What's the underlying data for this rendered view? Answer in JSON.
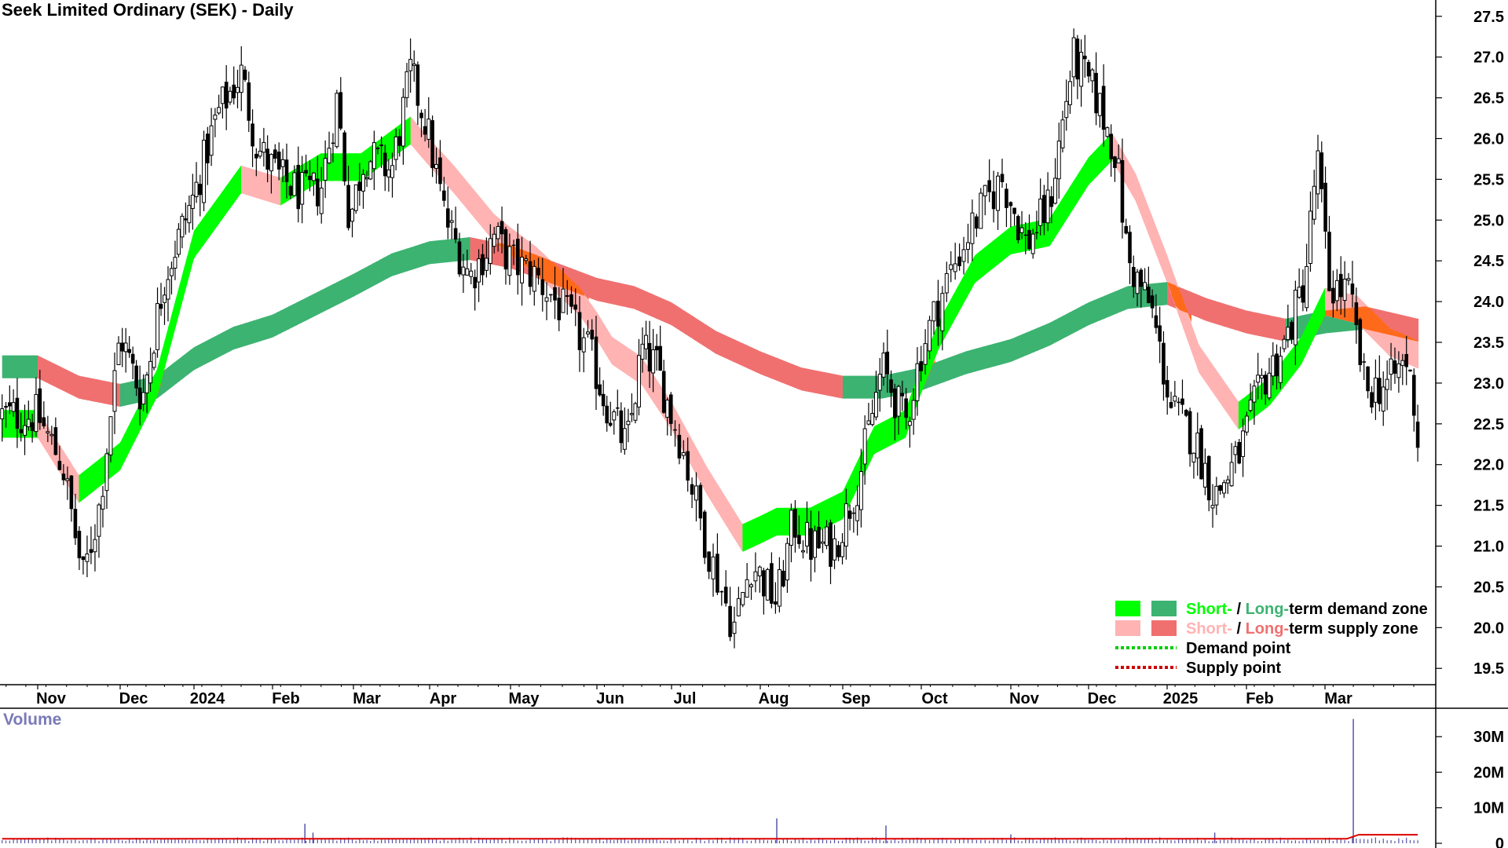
{
  "chart_data": {
    "type": "candlestick",
    "title": "Seek Limited Ordinary (SEK) - Daily",
    "price_axis": {
      "ylim": [
        19.3,
        27.7
      ],
      "ticks": [
        19.5,
        20.0,
        20.5,
        21.0,
        21.5,
        22.0,
        22.5,
        23.0,
        23.5,
        24.0,
        24.5,
        25.0,
        25.5,
        26.0,
        26.5,
        27.0,
        27.5
      ],
      "tick_labels": [
        "19.5",
        "20.0",
        "20.5",
        "21.0",
        "21.5",
        "22.0",
        "22.5",
        "23.0",
        "23.5",
        "24.0",
        "24.5",
        "25.0",
        "25.5",
        "26.0",
        "26.5",
        "27.0",
        "27.5"
      ],
      "side": "right"
    },
    "time_axis": {
      "labels": [
        "Nov",
        "Dec",
        "2024",
        "Feb",
        "Mar",
        "Apr",
        "May",
        "Jun",
        "Jul",
        "Aug",
        "Sep",
        "Oct",
        "Nov",
        "Dec",
        "2025",
        "Feb",
        "Mar"
      ],
      "bold_labels": [
        "2024",
        "2025"
      ]
    },
    "price_path": [
      {
        "m": 0.0,
        "p": 22.6
      },
      {
        "m": 0.3,
        "p": 22.0
      },
      {
        "m": 0.55,
        "p": 20.6
      },
      {
        "m": 0.75,
        "p": 21.5
      },
      {
        "m": 1.0,
        "p": 23.6
      },
      {
        "m": 1.3,
        "p": 22.8
      },
      {
        "m": 1.6,
        "p": 24.3
      },
      {
        "m": 2.0,
        "p": 25.3
      },
      {
        "m": 2.3,
        "p": 26.3
      },
      {
        "m": 2.6,
        "p": 26.8
      },
      {
        "m": 2.8,
        "p": 25.9
      },
      {
        "m": 3.1,
        "p": 25.5
      },
      {
        "m": 3.4,
        "p": 25.3
      },
      {
        "m": 3.6,
        "p": 25.4
      },
      {
        "m": 3.8,
        "p": 26.5
      },
      {
        "m": 3.95,
        "p": 25.0
      },
      {
        "m": 4.15,
        "p": 25.8
      },
      {
        "m": 4.5,
        "p": 25.6
      },
      {
        "m": 4.75,
        "p": 26.8
      },
      {
        "m": 4.95,
        "p": 26.2
      },
      {
        "m": 5.2,
        "p": 25.0
      },
      {
        "m": 5.5,
        "p": 24.3
      },
      {
        "m": 5.8,
        "p": 24.8
      },
      {
        "m": 6.0,
        "p": 24.5
      },
      {
        "m": 6.3,
        "p": 24.3
      },
      {
        "m": 6.6,
        "p": 23.9
      },
      {
        "m": 6.9,
        "p": 23.4
      },
      {
        "m": 7.1,
        "p": 22.8
      },
      {
        "m": 7.4,
        "p": 22.2
      },
      {
        "m": 7.6,
        "p": 23.4
      },
      {
        "m": 7.8,
        "p": 23.2
      },
      {
        "m": 8.1,
        "p": 22.3
      },
      {
        "m": 8.4,
        "p": 21.0
      },
      {
        "m": 8.7,
        "p": 20.0
      },
      {
        "m": 8.9,
        "p": 20.8
      },
      {
        "m": 9.2,
        "p": 20.3
      },
      {
        "m": 9.4,
        "p": 21.3
      },
      {
        "m": 9.6,
        "p": 21.0
      },
      {
        "m": 9.9,
        "p": 21.0
      },
      {
        "m": 10.2,
        "p": 21.8
      },
      {
        "m": 10.5,
        "p": 23.2
      },
      {
        "m": 10.8,
        "p": 22.5
      },
      {
        "m": 11.0,
        "p": 23.4
      },
      {
        "m": 11.3,
        "p": 24.3
      },
      {
        "m": 11.6,
        "p": 25.0
      },
      {
        "m": 11.9,
        "p": 25.5
      },
      {
        "m": 12.2,
        "p": 24.7
      },
      {
        "m": 12.5,
        "p": 25.2
      },
      {
        "m": 12.8,
        "p": 27.0
      },
      {
        "m": 13.1,
        "p": 26.5
      },
      {
        "m": 13.35,
        "p": 25.8
      },
      {
        "m": 13.5,
        "p": 24.5
      },
      {
        "m": 13.8,
        "p": 23.9
      },
      {
        "m": 14.05,
        "p": 22.7
      },
      {
        "m": 14.35,
        "p": 22.3
      },
      {
        "m": 14.6,
        "p": 21.6
      },
      {
        "m": 14.9,
        "p": 22.1
      },
      {
        "m": 15.2,
        "p": 23.0
      },
      {
        "m": 15.5,
        "p": 23.5
      },
      {
        "m": 15.75,
        "p": 24.3
      },
      {
        "m": 15.9,
        "p": 25.8
      },
      {
        "m": 16.05,
        "p": 24.2
      },
      {
        "m": 16.3,
        "p": 24.1
      },
      {
        "m": 16.5,
        "p": 22.9
      },
      {
        "m": 16.8,
        "p": 23.0
      },
      {
        "m": 17.0,
        "p": 23.3
      },
      {
        "m": 17.1,
        "p": 22.8
      },
      {
        "m": 17.15,
        "p": 22.3
      }
    ],
    "indicators": {
      "short_term_mean": [
        {
          "m": 0.0,
          "p": 22.5
        },
        {
          "m": 0.5,
          "p": 21.7
        },
        {
          "m": 1.0,
          "p": 22.1
        },
        {
          "m": 1.5,
          "p": 23.0
        },
        {
          "m": 2.0,
          "p": 24.7
        },
        {
          "m": 2.6,
          "p": 25.5
        },
        {
          "m": 3.1,
          "p": 25.35
        },
        {
          "m": 3.6,
          "p": 25.65
        },
        {
          "m": 4.1,
          "p": 25.65
        },
        {
          "m": 4.75,
          "p": 26.1
        },
        {
          "m": 5.3,
          "p": 25.5
        },
        {
          "m": 5.8,
          "p": 24.9
        },
        {
          "m": 6.3,
          "p": 24.5
        },
        {
          "m": 6.8,
          "p": 24.0
        },
        {
          "m": 7.2,
          "p": 23.4
        },
        {
          "m": 7.6,
          "p": 23.15
        },
        {
          "m": 8.0,
          "p": 22.6
        },
        {
          "m": 8.4,
          "p": 21.8
        },
        {
          "m": 8.8,
          "p": 21.1
        },
        {
          "m": 9.2,
          "p": 21.3
        },
        {
          "m": 9.6,
          "p": 21.3
        },
        {
          "m": 10.0,
          "p": 21.5
        },
        {
          "m": 10.4,
          "p": 22.3
        },
        {
          "m": 10.8,
          "p": 22.5
        },
        {
          "m": 11.2,
          "p": 23.6
        },
        {
          "m": 11.6,
          "p": 24.4
        },
        {
          "m": 12.0,
          "p": 24.75
        },
        {
          "m": 12.5,
          "p": 24.85
        },
        {
          "m": 13.0,
          "p": 25.6
        },
        {
          "m": 13.3,
          "p": 25.9
        },
        {
          "m": 13.6,
          "p": 25.4
        },
        {
          "m": 14.0,
          "p": 24.4
        },
        {
          "m": 14.4,
          "p": 23.3
        },
        {
          "m": 14.9,
          "p": 22.6
        },
        {
          "m": 15.3,
          "p": 22.9
        },
        {
          "m": 15.7,
          "p": 23.4
        },
        {
          "m": 16.0,
          "p": 24.0
        },
        {
          "m": 16.4,
          "p": 23.9
        },
        {
          "m": 16.8,
          "p": 23.5
        },
        {
          "m": 17.15,
          "p": 23.35
        }
      ],
      "short_term_band_width": 0.34,
      "long_term_mean": [
        {
          "m": 0.0,
          "p": 23.2
        },
        {
          "m": 0.5,
          "p": 22.95
        },
        {
          "m": 1.0,
          "p": 22.85
        },
        {
          "m": 1.5,
          "p": 22.95
        },
        {
          "m": 2.0,
          "p": 23.3
        },
        {
          "m": 2.5,
          "p": 23.55
        },
        {
          "m": 3.0,
          "p": 23.7
        },
        {
          "m": 3.5,
          "p": 23.95
        },
        {
          "m": 4.0,
          "p": 24.2
        },
        {
          "m": 4.5,
          "p": 24.45
        },
        {
          "m": 5.0,
          "p": 24.6
        },
        {
          "m": 5.5,
          "p": 24.65
        },
        {
          "m": 6.0,
          "p": 24.55
        },
        {
          "m": 6.5,
          "p": 24.35
        },
        {
          "m": 7.0,
          "p": 24.15
        },
        {
          "m": 7.5,
          "p": 24.05
        },
        {
          "m": 8.0,
          "p": 23.85
        },
        {
          "m": 8.5,
          "p": 23.5
        },
        {
          "m": 9.0,
          "p": 23.25
        },
        {
          "m": 9.5,
          "p": 23.05
        },
        {
          "m": 10.0,
          "p": 22.95
        },
        {
          "m": 10.5,
          "p": 22.95
        },
        {
          "m": 11.0,
          "p": 23.05
        },
        {
          "m": 11.5,
          "p": 23.25
        },
        {
          "m": 12.0,
          "p": 23.4
        },
        {
          "m": 12.5,
          "p": 23.6
        },
        {
          "m": 13.0,
          "p": 23.85
        },
        {
          "m": 13.5,
          "p": 24.05
        },
        {
          "m": 14.0,
          "p": 24.1
        },
        {
          "m": 14.5,
          "p": 23.9
        },
        {
          "m": 15.0,
          "p": 23.75
        },
        {
          "m": 15.5,
          "p": 23.65
        },
        {
          "m": 16.0,
          "p": 23.75
        },
        {
          "m": 16.5,
          "p": 23.8
        },
        {
          "m": 17.15,
          "p": 23.65
        }
      ],
      "long_term_band_width": 0.28
    },
    "volume": {
      "ylim": [
        0,
        38
      ],
      "ticks": [
        0,
        10,
        20,
        30
      ],
      "tick_labels": [
        "0",
        "10M",
        "20M",
        "30M"
      ],
      "typical": 1.2,
      "spikes": [
        {
          "m": 3.4,
          "v": 5.5
        },
        {
          "m": 3.5,
          "v": 3.0
        },
        {
          "m": 9.2,
          "v": 7.0
        },
        {
          "m": 10.55,
          "v": 5.0
        },
        {
          "m": 12.0,
          "v": 2.5
        },
        {
          "m": 14.6,
          "v": 3.0
        },
        {
          "m": 16.35,
          "v": 35.0
        }
      ]
    },
    "legend": {
      "placement": "bottom-right",
      "items": [
        {
          "type": "zone",
          "colors": [
            "#00ff00",
            "#3cb371"
          ],
          "parts": [
            "Short-",
            " / ",
            "Long-",
            "term demand zone"
          ],
          "part_colors": [
            "#00ff00",
            "#000000",
            "#3cb371",
            "#000000"
          ]
        },
        {
          "type": "zone",
          "colors": [
            "#ffb3b3",
            "#f07070"
          ],
          "parts": [
            "Short-",
            " / ",
            "Long-",
            "term supply zone"
          ],
          "part_colors": [
            "#ffb3b3",
            "#000000",
            "#f07070",
            "#000000"
          ]
        },
        {
          "type": "point",
          "color": "#00cc00",
          "label": "Demand point"
        },
        {
          "type": "point",
          "color": "#cc0000",
          "label": "Supply point"
        }
      ]
    },
    "volume_label": "Volume",
    "colors": {
      "candle": "#000000",
      "short_demand": "#00ff00",
      "long_demand": "#3cb371",
      "short_supply": "#ffb3b3",
      "long_supply": "#f07070",
      "overlap": "#ff6a1a",
      "volume_bar": "#5555aa",
      "volume_avg": "#dd0000",
      "grid": "#000000"
    }
  }
}
